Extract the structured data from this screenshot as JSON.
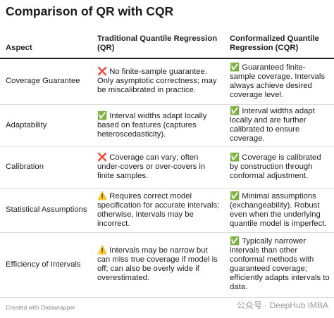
{
  "header": {
    "title": "Comparison of QR with CQR"
  },
  "table": {
    "columns": [
      "Aspect",
      "Traditional Quantile Regression (QR)",
      "Conformalized Quantile Regression (CQR)"
    ],
    "rows": [
      [
        "Coverage Guarantee",
        "❌ No finite-sample guarantee. Only asymptotic correctness; may be miscalibrated in practice.",
        "✅ Guaranteed finite-sample coverage. Intervals always achieve desired coverage level."
      ],
      [
        "Adaptability",
        "✅ Interval widths adapt locally based on features (captures heteroscedasticity).",
        "✅ Interval widths adapt locally and are further calibrated to ensure coverage."
      ],
      [
        "Calibration",
        "❌ Coverage can vary; often under-covers or over-covers in finite samples.",
        "✅ Coverage is calibrated by construction through conformal adjustment."
      ],
      [
        "Statistical Assumptions",
        "⚠️ Requires correct model specification for accurate intervals; otherwise, intervals may be incorrect.",
        "✅ Minimal assumptions (exchangeability). Robust even when the underlying quantile model is imperfect."
      ],
      [
        "Efficiency of Intervals",
        "⚠️ Intervals may be narrow but can miss true coverage if model is off; can also be overly wide if overestimated.",
        "✅ Typically narrower intervals than other conformal methods with guaranteed coverage; efficiently adapts intervals to data."
      ]
    ]
  },
  "footer": {
    "credit": "Created with Datawrapper",
    "watermark": "公众号 · DeepHub IMBA"
  }
}
